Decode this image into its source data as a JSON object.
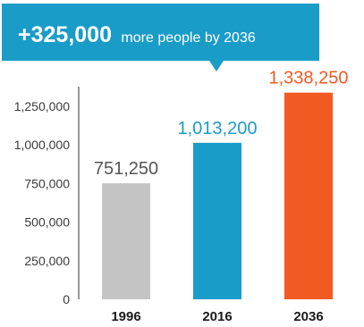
{
  "callout": {
    "increase": "+325,000",
    "text": "more people by 2036",
    "color": "#1a9cc8"
  },
  "chart_data": {
    "type": "bar",
    "categories": [
      "1996",
      "2016",
      "2036"
    ],
    "values": [
      751250,
      1013200,
      1338250
    ],
    "value_labels": [
      "751,250",
      "1,013,200",
      "1,338,250"
    ],
    "colors": [
      "#c4c4c4",
      "#1a9cc8",
      "#f15a22"
    ],
    "value_label_colors": [
      "#555555",
      "#1a9cc8",
      "#f15a22"
    ],
    "ylim": [
      0,
      1400000
    ],
    "yticks": [
      0,
      250000,
      500000,
      750000,
      1000000,
      1250000
    ],
    "ytick_labels": [
      "0",
      "250,000",
      "500,000",
      "750,000",
      "1,000,000",
      "1,250,000"
    ],
    "title": "",
    "xlabel": "",
    "ylabel": "",
    "grid": false,
    "legend": "none"
  }
}
